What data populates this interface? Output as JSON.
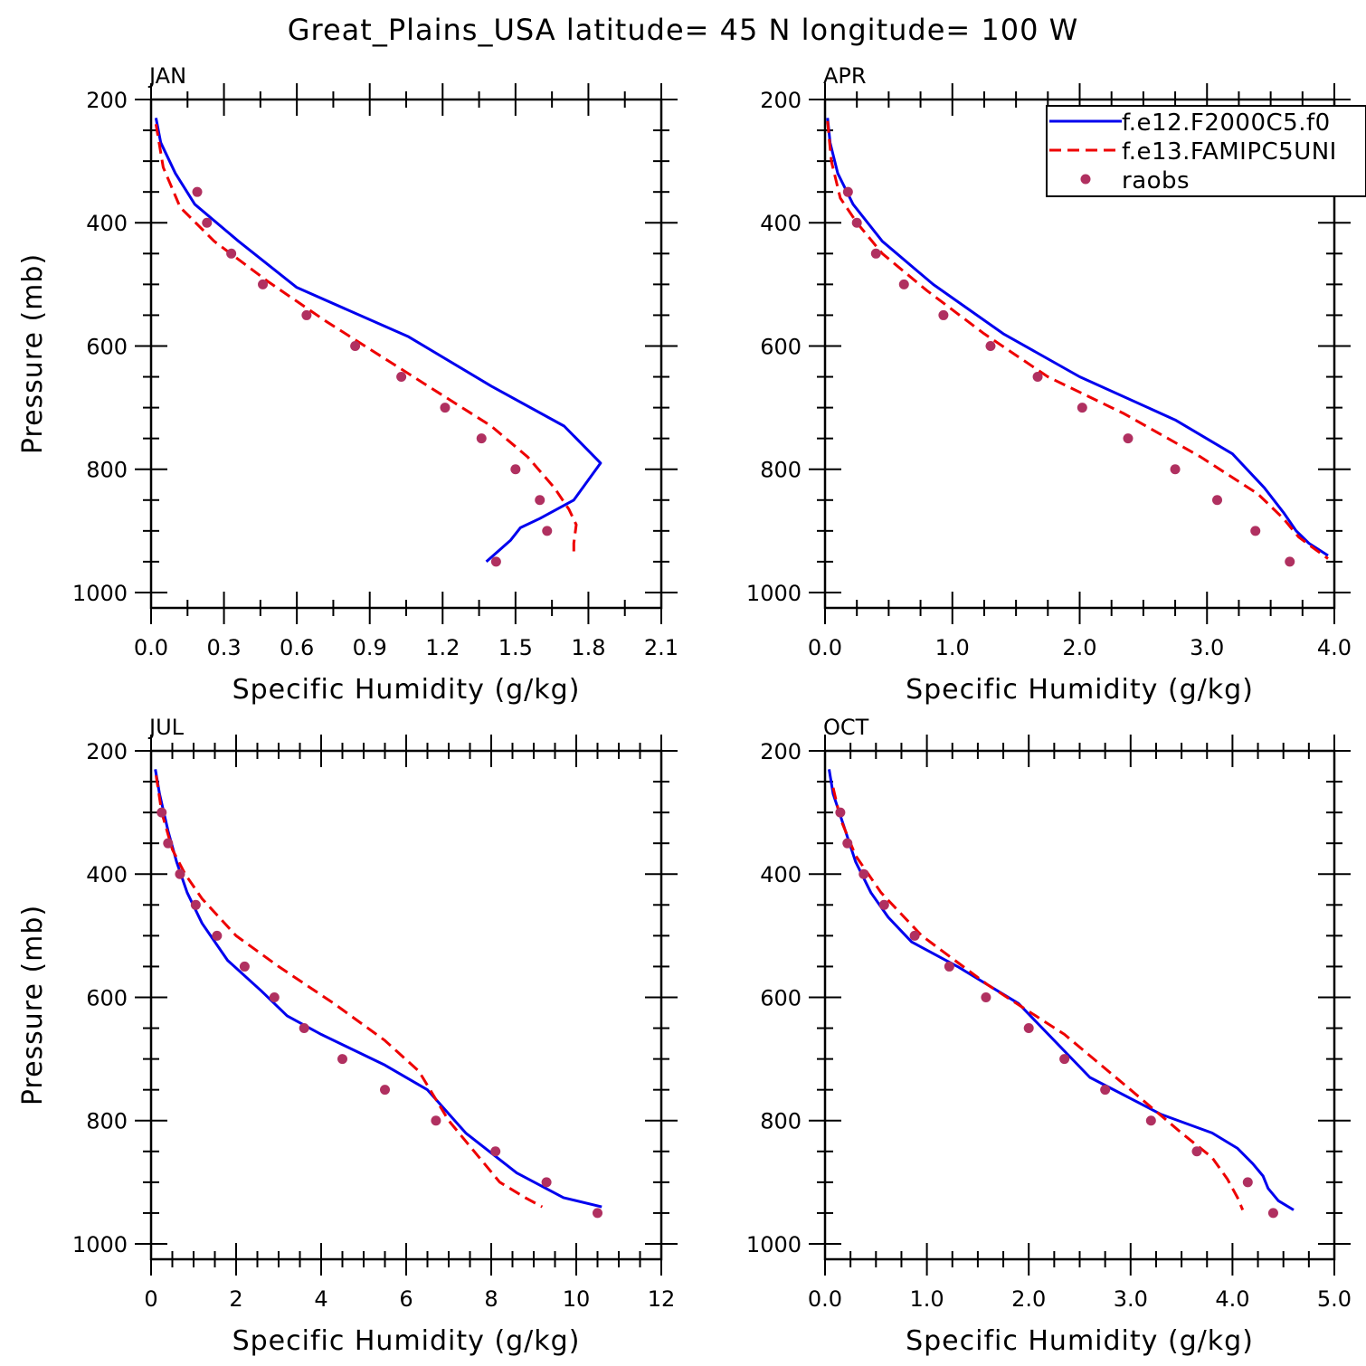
{
  "title": "Great_Plains_USA  latitude= 45 N longitude= 100 W",
  "legend": {
    "entries": [
      {
        "label": "f.e12.F2000C5.f0",
        "style": "line",
        "color": "#0000ee"
      },
      {
        "label": "f.e13.FAMIPC5UNI",
        "style": "dashed",
        "color": "#ee0000"
      },
      {
        "label": "raobs",
        "style": "marker",
        "color": "#b03060"
      }
    ]
  },
  "colors": {
    "model1": "#0000ee",
    "model2": "#ee0000",
    "obs": "#b03060",
    "axis": "#000000"
  },
  "chart_data": [
    {
      "type": "line",
      "label": "JAN",
      "xlabel": "Specific Humidity (g/kg)",
      "ylabel": "Pressure (mb)",
      "xlim": [
        0,
        2.1
      ],
      "ylim": [
        200,
        1025
      ],
      "xticks": [
        0,
        0.3,
        0.6,
        0.9,
        1.2,
        1.5,
        1.8,
        2.1
      ],
      "xtick_labels": [
        "0.0",
        "0.3",
        "0.6",
        "0.9",
        "1.2",
        "1.5",
        "1.8",
        "2.1"
      ],
      "yticks": [
        200,
        400,
        600,
        800,
        1000
      ],
      "ytick_labels": [
        "200",
        "400",
        "600",
        "800",
        "1000"
      ],
      "series": [
        {
          "name": "f.e12.F2000C5.f0",
          "style": "solid",
          "x": [
            0.02,
            0.04,
            0.1,
            0.18,
            0.36,
            0.6,
            1.06,
            1.4,
            1.7,
            1.85,
            1.74,
            1.6,
            1.52,
            1.48,
            1.38
          ],
          "y": [
            230,
            270,
            320,
            370,
            430,
            505,
            585,
            665,
            730,
            790,
            850,
            880,
            895,
            915,
            950
          ]
        },
        {
          "name": "f.e13.FAMIPC5UNI",
          "style": "dashed",
          "x": [
            0.02,
            0.05,
            0.12,
            0.26,
            0.48,
            0.72,
            0.98,
            1.2,
            1.4,
            1.55,
            1.66,
            1.72,
            1.75,
            1.74,
            1.74
          ],
          "y": [
            240,
            310,
            375,
            430,
            495,
            560,
            625,
            680,
            730,
            780,
            830,
            865,
            890,
            920,
            940
          ]
        },
        {
          "name": "raobs",
          "style": "markers",
          "x": [
            0.19,
            0.23,
            0.33,
            0.46,
            0.64,
            0.84,
            1.03,
            1.21,
            1.36,
            1.5,
            1.6,
            1.63,
            1.42
          ],
          "y": [
            350,
            400,
            450,
            500,
            550,
            600,
            650,
            700,
            750,
            800,
            850,
            900,
            950
          ]
        }
      ]
    },
    {
      "type": "line",
      "label": "APR",
      "xlabel": "Specific Humidity (g/kg)",
      "ylabel": "",
      "xlim": [
        0,
        4
      ],
      "ylim": [
        200,
        1025
      ],
      "xticks": [
        0,
        1,
        2,
        3,
        4
      ],
      "xtick_labels": [
        "0.0",
        "1.0",
        "2.0",
        "3.0",
        "4.0"
      ],
      "yticks": [
        200,
        400,
        600,
        800,
        1000
      ],
      "ytick_labels": [
        "200",
        "400",
        "600",
        "800",
        "1000"
      ],
      "series": [
        {
          "name": "f.e12.F2000C5.f0",
          "style": "solid",
          "x": [
            0.02,
            0.04,
            0.1,
            0.22,
            0.45,
            0.85,
            1.4,
            2.0,
            2.75,
            3.2,
            3.45,
            3.6,
            3.7,
            3.8,
            3.95
          ],
          "y": [
            230,
            270,
            320,
            370,
            430,
            500,
            580,
            650,
            720,
            775,
            830,
            870,
            900,
            920,
            940
          ]
        },
        {
          "name": "f.e13.FAMIPC5UNI",
          "style": "dashed",
          "x": [
            0.02,
            0.05,
            0.12,
            0.25,
            0.45,
            0.8,
            1.25,
            1.75,
            2.35,
            2.95,
            3.4,
            3.6,
            3.72,
            3.85,
            3.95
          ],
          "y": [
            235,
            300,
            360,
            400,
            450,
            510,
            580,
            650,
            710,
            780,
            840,
            880,
            910,
            930,
            945
          ]
        },
        {
          "name": "raobs",
          "style": "markers",
          "x": [
            0.18,
            0.25,
            0.4,
            0.62,
            0.93,
            1.3,
            1.67,
            2.02,
            2.38,
            2.75,
            3.08,
            3.38,
            3.65
          ],
          "y": [
            350,
            400,
            450,
            500,
            550,
            600,
            650,
            700,
            750,
            800,
            850,
            900,
            950
          ]
        }
      ]
    },
    {
      "type": "line",
      "label": "JUL",
      "xlabel": "Specific Humidity (g/kg)",
      "ylabel": "Pressure (mb)",
      "xlim": [
        0,
        12
      ],
      "ylim": [
        200,
        1025
      ],
      "xticks": [
        0,
        2,
        4,
        6,
        8,
        10,
        12
      ],
      "xtick_labels": [
        "0",
        "2",
        "4",
        "6",
        "8",
        "10",
        "12"
      ],
      "yticks": [
        200,
        400,
        600,
        800,
        1000
      ],
      "ytick_labels": [
        "200",
        "400",
        "600",
        "800",
        "1000"
      ],
      "series": [
        {
          "name": "f.e12.F2000C5.f0",
          "style": "solid",
          "x": [
            0.1,
            0.2,
            0.4,
            0.6,
            0.85,
            1.2,
            1.8,
            2.6,
            3.2,
            4.0,
            5.5,
            6.5,
            7.4,
            8.6,
            9.7,
            10.6
          ],
          "y": [
            230,
            270,
            330,
            380,
            430,
            480,
            540,
            590,
            630,
            660,
            710,
            750,
            820,
            885,
            925,
            940
          ]
        },
        {
          "name": "f.e13.FAMIPC5UNI",
          "style": "dashed",
          "x": [
            0.12,
            0.25,
            0.5,
            0.8,
            1.2,
            2.0,
            3.0,
            4.3,
            5.5,
            6.3,
            7.0,
            7.6,
            8.2,
            8.8,
            9.2
          ],
          "y": [
            240,
            300,
            360,
            400,
            440,
            500,
            550,
            610,
            670,
            720,
            800,
            850,
            900,
            925,
            940
          ]
        },
        {
          "name": "raobs",
          "style": "markers",
          "x": [
            0.25,
            0.4,
            0.68,
            1.05,
            1.55,
            2.2,
            2.9,
            3.6,
            4.5,
            5.5,
            6.7,
            8.1,
            9.3,
            10.5
          ],
          "y": [
            300,
            350,
            400,
            450,
            500,
            550,
            600,
            650,
            700,
            750,
            800,
            850,
            900,
            950
          ]
        }
      ]
    },
    {
      "type": "line",
      "label": "OCT",
      "xlabel": "Specific Humidity (g/kg)",
      "ylabel": "",
      "xlim": [
        0,
        5
      ],
      "ylim": [
        200,
        1025
      ],
      "xticks": [
        0,
        1,
        2,
        3,
        4,
        5
      ],
      "xtick_labels": [
        "0.0",
        "1.0",
        "2.0",
        "3.0",
        "4.0",
        "5.0"
      ],
      "yticks": [
        200,
        400,
        600,
        800,
        1000
      ],
      "ytick_labels": [
        "200",
        "400",
        "600",
        "800",
        "1000"
      ],
      "series": [
        {
          "name": "f.e12.F2000C5.f0",
          "style": "solid",
          "x": [
            0.04,
            0.08,
            0.18,
            0.3,
            0.45,
            0.62,
            0.85,
            1.3,
            1.9,
            2.6,
            3.3,
            3.8,
            4.05,
            4.2,
            4.3,
            4.35,
            4.45,
            4.6
          ],
          "y": [
            230,
            270,
            320,
            380,
            430,
            470,
            510,
            550,
            610,
            730,
            790,
            820,
            845,
            870,
            890,
            910,
            930,
            945
          ]
        },
        {
          "name": "f.e13.FAMIPC5UNI",
          "style": "dashed",
          "x": [
            0.08,
            0.15,
            0.3,
            0.55,
            0.95,
            1.6,
            2.35,
            3.0,
            3.5,
            3.8,
            3.95,
            4.05,
            4.1
          ],
          "y": [
            260,
            310,
            370,
            430,
            500,
            580,
            660,
            750,
            820,
            860,
            895,
            925,
            945
          ]
        },
        {
          "name": "raobs",
          "style": "markers",
          "x": [
            0.15,
            0.22,
            0.38,
            0.58,
            0.88,
            1.22,
            1.58,
            2.0,
            2.35,
            2.75,
            3.2,
            3.65,
            4.15,
            4.4
          ],
          "y": [
            300,
            350,
            400,
            450,
            500,
            550,
            600,
            650,
            700,
            750,
            800,
            850,
            900,
            950
          ]
        }
      ]
    }
  ]
}
